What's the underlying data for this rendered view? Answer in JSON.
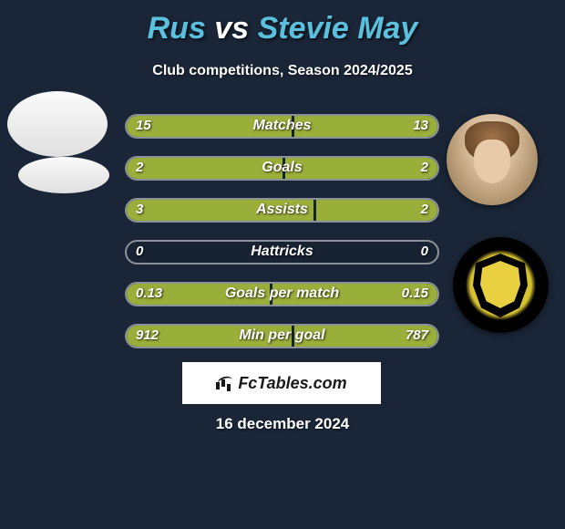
{
  "title": {
    "player1": "Rus",
    "vs": "vs",
    "player2": "Stevie May"
  },
  "subtitle": "Club competitions, Season 2024/2025",
  "colors": {
    "background": "#1a2638",
    "title_accent": "#5bc0de",
    "bar_fill": "#9aae3a",
    "text": "#ffffff",
    "brand_bg": "#ffffff",
    "brand_text": "#1a1a1a"
  },
  "stats": [
    {
      "label": "Matches",
      "left_value": "15",
      "right_value": "13",
      "left_fill_pct": 53,
      "right_fill_pct": 46
    },
    {
      "label": "Goals",
      "left_value": "2",
      "right_value": "2",
      "left_fill_pct": 50,
      "right_fill_pct": 49
    },
    {
      "label": "Assists",
      "left_value": "3",
      "right_value": "2",
      "left_fill_pct": 60,
      "right_fill_pct": 39
    },
    {
      "label": "Hattricks",
      "left_value": "0",
      "right_value": "0",
      "left_fill_pct": 0,
      "right_fill_pct": 0
    },
    {
      "label": "Goals per match",
      "left_value": "0.13",
      "right_value": "0.15",
      "left_fill_pct": 46,
      "right_fill_pct": 53
    },
    {
      "label": "Min per goal",
      "left_value": "912",
      "right_value": "787",
      "left_fill_pct": 53,
      "right_fill_pct": 46
    }
  ],
  "brand": "FcTables.com",
  "date": "16 december 2024"
}
